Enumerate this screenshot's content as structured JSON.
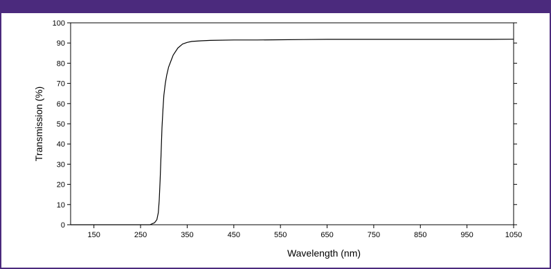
{
  "colors": {
    "frame": "#4b2a7d",
    "line": "#000000"
  },
  "chart_data": {
    "type": "line",
    "title": "",
    "xlabel": "Wavelength (nm)",
    "ylabel": "Transmission (%)",
    "xlim": [
      100,
      1050
    ],
    "ylim": [
      0,
      100
    ],
    "x_ticks": [
      150,
      250,
      350,
      450,
      550,
      650,
      750,
      850,
      950,
      1050
    ],
    "y_ticks": [
      0,
      10,
      20,
      30,
      40,
      50,
      60,
      70,
      80,
      90,
      100
    ],
    "grid": false,
    "series": [
      {
        "name": "",
        "x": [
          100,
          250,
          270,
          280,
          285,
          288,
          290,
          292,
          294,
          296,
          298,
          300,
          303,
          306,
          310,
          315,
          320,
          330,
          340,
          350,
          360,
          380,
          400,
          450,
          500,
          550,
          600,
          650,
          700,
          750,
          800,
          900,
          1000,
          1050
        ],
        "y": [
          0,
          0,
          0,
          1,
          2.5,
          6,
          12,
          22,
          35,
          48,
          57,
          64,
          70,
          74,
          78,
          81,
          84,
          87.5,
          89.5,
          90.3,
          90.8,
          91.1,
          91.3,
          91.5,
          91.5,
          91.6,
          91.7,
          91.8,
          91.8,
          91.8,
          91.8,
          91.8,
          91.8,
          91.9
        ]
      }
    ]
  }
}
